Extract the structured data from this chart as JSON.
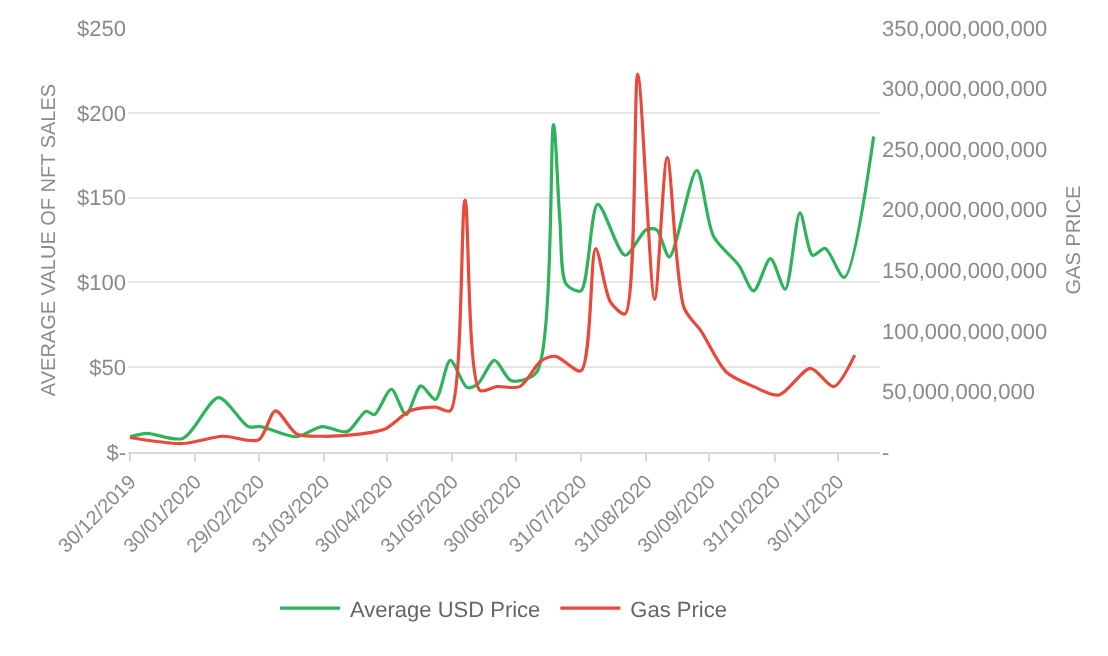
{
  "chart_data": {
    "type": "line",
    "ylabel": "AVERAGE VALUE OF NFT SALES",
    "y2label": "GAS PRICE",
    "xlim": [
      "2019-12-29",
      "2020-12-20"
    ],
    "xticks": [
      {
        "value": "2019-12-30",
        "label": "30/12/2019"
      },
      {
        "value": "2020-01-30",
        "label": "30/01/2020"
      },
      {
        "value": "2020-02-29",
        "label": "29/02/2020"
      },
      {
        "value": "2020-03-31",
        "label": "31/03/2020"
      },
      {
        "value": "2020-04-30",
        "label": "30/04/2020"
      },
      {
        "value": "2020-05-31",
        "label": "31/05/2020"
      },
      {
        "value": "2020-06-30",
        "label": "30/06/2020"
      },
      {
        "value": "2020-07-31",
        "label": "31/07/2020"
      },
      {
        "value": "2020-08-31",
        "label": "31/08/2020"
      },
      {
        "value": "2020-09-30",
        "label": "30/09/2020"
      },
      {
        "value": "2020-10-31",
        "label": "31/10/2020"
      },
      {
        "value": "2020-11-30",
        "label": "30/11/2020"
      }
    ],
    "ylim": [
      0,
      250
    ],
    "yticks": [
      {
        "value": 0,
        "label": "$-"
      },
      {
        "value": 50,
        "label": "$50"
      },
      {
        "value": 100,
        "label": "$100"
      },
      {
        "value": 150,
        "label": "$150"
      },
      {
        "value": 200,
        "label": "$200"
      },
      {
        "value": 250,
        "label": "$250"
      }
    ],
    "y2lim": [
      0,
      350000000000
    ],
    "y2ticks": [
      {
        "value": 0,
        "label": "-"
      },
      {
        "value": 50000000000,
        "label": "50,000,000,000"
      },
      {
        "value": 100000000000,
        "label": "100,000,000,000"
      },
      {
        "value": 150000000000,
        "label": "150,000,000,000"
      },
      {
        "value": 200000000000,
        "label": "200,000,000,000"
      },
      {
        "value": 250000000000,
        "label": "250,000,000,000"
      },
      {
        "value": 300000000000,
        "label": "300,000,000,000"
      },
      {
        "value": 350000000000,
        "label": "350,000,000,000"
      }
    ],
    "grid": "y",
    "legend": "bottom",
    "line_style": "solid",
    "series": [
      {
        "name": "Average USD Price",
        "color": "#2eb35c",
        "x": [
          "2019-12-30",
          "2020-01-07",
          "2020-01-24",
          "2020-02-10",
          "2020-02-24",
          "2020-03-01",
          "2020-03-18",
          "2020-03-30",
          "2020-04-11",
          "2020-04-20",
          "2020-04-24",
          "2020-05-02",
          "2020-05-09",
          "2020-05-16",
          "2020-05-23",
          "2020-05-30",
          "2020-06-07",
          "2020-06-12",
          "2020-06-20",
          "2020-06-28",
          "2020-07-10",
          "2020-07-18",
          "2020-07-21",
          "2020-07-24",
          "2020-07-31",
          "2020-08-08",
          "2020-08-21",
          "2020-08-31",
          "2020-09-05",
          "2020-09-11",
          "2020-09-24",
          "2020-10-02",
          "2020-10-14",
          "2020-10-21",
          "2020-10-29",
          "2020-11-05",
          "2020-11-12",
          "2020-11-18",
          "2020-11-24",
          "2020-12-03",
          "2020-12-17"
        ],
        "values": [
          9,
          11,
          8,
          32,
          15,
          15,
          9,
          15,
          12,
          24,
          22,
          37,
          22,
          39,
          31,
          54,
          38,
          40,
          54,
          42,
          47,
          193,
          137,
          99,
          95,
          146,
          116,
          131,
          131,
          115,
          166,
          127,
          110,
          95,
          114,
          96,
          141,
          116,
          120,
          103,
          186
        ]
      },
      {
        "name": "Gas Price",
        "color": "#e8493b",
        "axis": "y2",
        "x": [
          "2019-12-30",
          "2020-01-24",
          "2020-02-12",
          "2020-02-29",
          "2020-03-08",
          "2020-03-18",
          "2020-03-30",
          "2020-04-18",
          "2020-04-29",
          "2020-05-11",
          "2020-05-23",
          "2020-05-30",
          "2020-06-06",
          "2020-06-13",
          "2020-06-21",
          "2020-07-02",
          "2020-07-12",
          "2020-07-19",
          "2020-07-31",
          "2020-08-07",
          "2020-08-14",
          "2020-08-21",
          "2020-08-27",
          "2020-09-04",
          "2020-09-10",
          "2020-09-18",
          "2020-09-26",
          "2020-10-08",
          "2020-10-21",
          "2020-11-02",
          "2020-11-17",
          "2020-11-28",
          "2020-12-08"
        ],
        "values": [
          12000000000,
          7000000000,
          13000000000,
          10000000000,
          34000000000,
          15000000000,
          13000000000,
          15000000000,
          19000000000,
          34000000000,
          37000000000,
          34000000000,
          208000000000,
          51000000000,
          54000000000,
          54000000000,
          75000000000,
          79000000000,
          67000000000,
          168000000000,
          124000000000,
          114000000000,
          312000000000,
          126000000000,
          243000000000,
          119000000000,
          100000000000,
          66000000000,
          54000000000,
          47000000000,
          69000000000,
          54000000000,
          80000000000
        ]
      }
    ]
  }
}
